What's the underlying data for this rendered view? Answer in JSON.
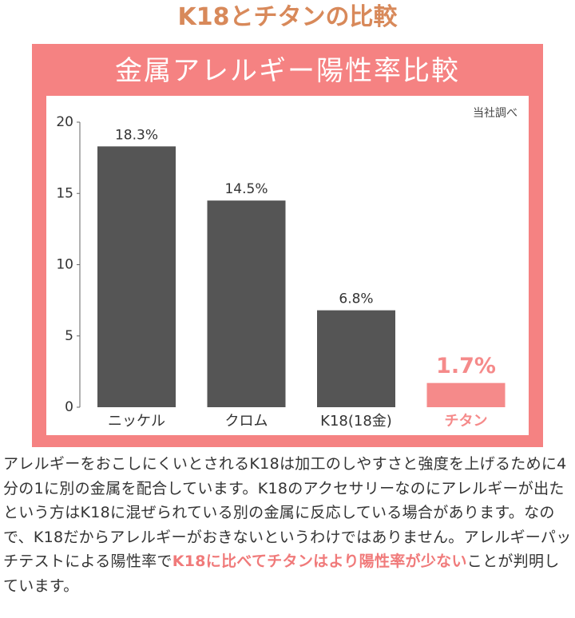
{
  "page_title": "K18とチタンの比較",
  "chart_data": {
    "type": "bar",
    "title": "金属アレルギー陽性率比較",
    "annotation": "当社調べ",
    "categories": [
      "ニッケル",
      "クロム",
      "K18(18金)",
      "チタン"
    ],
    "values": [
      18.3,
      14.5,
      6.8,
      1.7
    ],
    "value_labels": [
      "18.3%",
      "14.5%",
      "6.8%",
      "1.7%"
    ],
    "colors": [
      "#555555",
      "#555555",
      "#555555",
      "#f58a8a"
    ],
    "ylim": [
      0,
      20
    ],
    "yticks": [
      0,
      5,
      10,
      15,
      20
    ],
    "grid": false
  },
  "description": {
    "text": "アレルギーをおこしにくいとされるK18は加工のしやすさと強度を上げるために4分の1に別の金属を配合しています。K18のアクセサリーなのにアレルギーが出たという方はK18に混ぜられている別の金属に反応している場合があります。なので、K18だからアレルギーがおきないというわけではありません。アレルギーパッチテストによる陽性率で",
    "highlight": "K18に比べてチタンはより陽性率が少ない",
    "ending": "ことが判明しています。"
  }
}
